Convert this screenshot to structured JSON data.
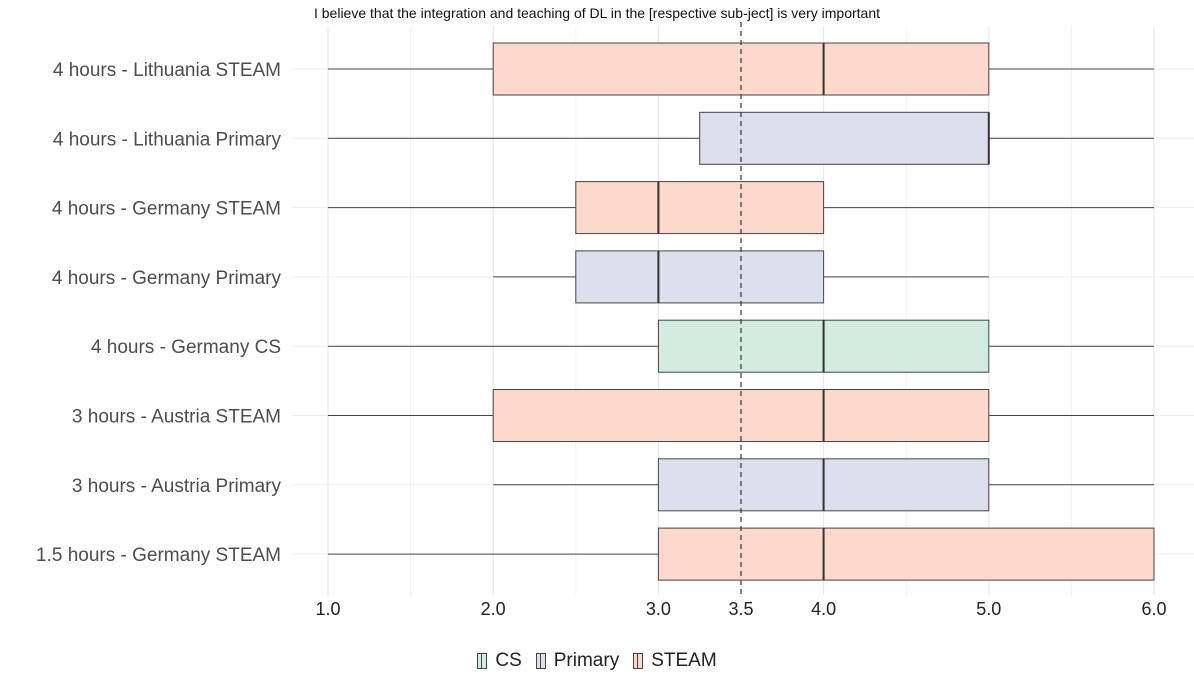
{
  "chart_data": {
    "type": "boxplot",
    "title": "I believe that the integration and teaching of DL in the [respective sub-ject] is very important",
    "xlabel": "",
    "ylabel": "",
    "xlim": [
      1.0,
      6.0
    ],
    "x_ticks": [
      {
        "value": 1.0,
        "label": "1.0"
      },
      {
        "value": 2.0,
        "label": "2.0"
      },
      {
        "value": 3.0,
        "label": "3.0"
      },
      {
        "value": 3.5,
        "label": "3.5"
      },
      {
        "value": 4.0,
        "label": "4.0"
      },
      {
        "value": 5.0,
        "label": "5.0"
      },
      {
        "value": 6.0,
        "label": "6.0"
      }
    ],
    "reference_line": {
      "value": 3.5,
      "style": "dashed"
    },
    "grid": true,
    "legend_position": "bottom",
    "groups": [
      {
        "name": "CS",
        "color": "#d3ece2"
      },
      {
        "name": "Primary",
        "color": "#dcdfee"
      },
      {
        "name": "STEAM",
        "color": "#fdd9cc"
      }
    ],
    "categories": [
      "4 hours - Lithuania STEAM",
      "4 hours - Lithuania Primary",
      "4 hours - Germany STEAM",
      "4 hours - Germany Primary",
      "4 hours - Germany CS",
      "3 hours - Austria STEAM",
      "3 hours - Austria Primary",
      "1.5 hours - Germany STEAM"
    ],
    "boxes": [
      {
        "category": "4 hours - Lithuania STEAM",
        "group": "STEAM",
        "min": 1,
        "q1": 2,
        "median": 4,
        "q3": 5,
        "max": 6
      },
      {
        "category": "4 hours - Lithuania Primary",
        "group": "Primary",
        "min": 1,
        "q1": 3.25,
        "median": 5,
        "q3": 5,
        "max": 6
      },
      {
        "category": "4 hours - Germany STEAM",
        "group": "STEAM",
        "min": 1,
        "q1": 2.5,
        "median": 3,
        "q3": 4,
        "max": 6
      },
      {
        "category": "4 hours - Germany Primary",
        "group": "Primary",
        "min": 2,
        "q1": 2.5,
        "median": 3,
        "q3": 4,
        "max": 5
      },
      {
        "category": "4 hours - Germany CS",
        "group": "CS",
        "min": 1,
        "q1": 3,
        "median": 4,
        "q3": 5,
        "max": 6
      },
      {
        "category": "3 hours - Austria STEAM",
        "group": "STEAM",
        "min": 1,
        "q1": 2,
        "median": 4,
        "q3": 5,
        "max": 6
      },
      {
        "category": "3 hours - Austria Primary",
        "group": "Primary",
        "min": 2,
        "q1": 3,
        "median": 4,
        "q3": 5,
        "max": 6
      },
      {
        "category": "1.5 hours - Germany STEAM",
        "group": "STEAM",
        "min": 1,
        "q1": 3,
        "median": 4,
        "q3": 6,
        "max": 6
      }
    ]
  }
}
